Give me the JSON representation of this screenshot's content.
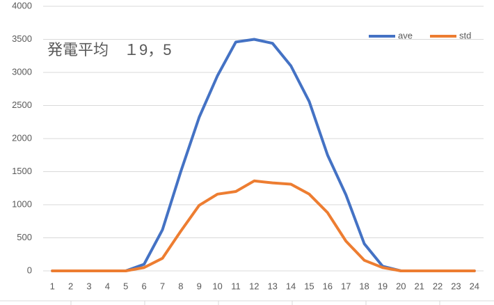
{
  "chart_data": {
    "type": "line",
    "annotation": "発電平均　１9，5",
    "categories": [
      "1",
      "2",
      "3",
      "4",
      "5",
      "6",
      "7",
      "8",
      "9",
      "10",
      "11",
      "12",
      "13",
      "14",
      "15",
      "16",
      "17",
      "18",
      "19",
      "20",
      "21",
      "22",
      "23",
      "24"
    ],
    "series": [
      {
        "name": "ave",
        "color": "#4472c4",
        "values": [
          0,
          0,
          0,
          0,
          0,
          100,
          620,
          1500,
          2320,
          2950,
          3460,
          3500,
          3440,
          3100,
          2560,
          1750,
          1150,
          410,
          70,
          0,
          0,
          0,
          0,
          0
        ]
      },
      {
        "name": "std",
        "color": "#ed7d31",
        "values": [
          0,
          0,
          0,
          0,
          0,
          50,
          190,
          600,
          990,
          1160,
          1200,
          1360,
          1330,
          1310,
          1160,
          880,
          450,
          160,
          50,
          0,
          0,
          0,
          0,
          0
        ]
      }
    ],
    "ylim": [
      0,
      4000
    ],
    "yticks": [
      0,
      500,
      1000,
      1500,
      2000,
      2500,
      3000,
      3500,
      4000
    ],
    "grid": true,
    "legend": "top-right"
  }
}
